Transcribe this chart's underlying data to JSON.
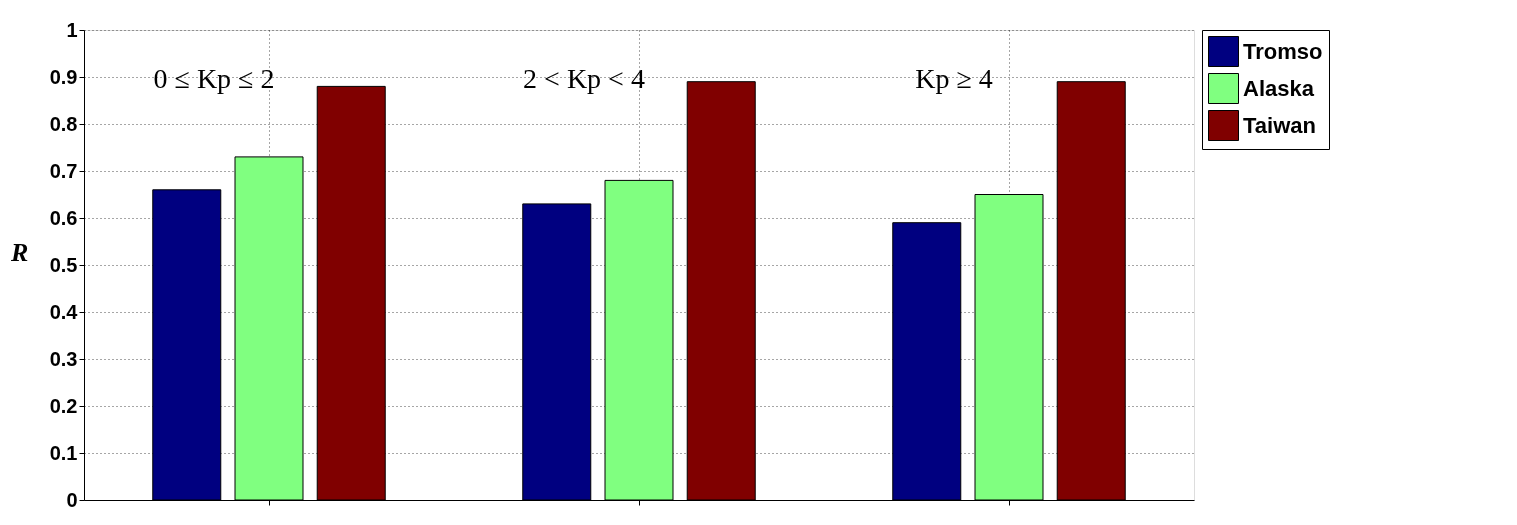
{
  "chart_data": {
    "type": "bar",
    "ylabel": "R",
    "categories": [
      null,
      null,
      null
    ],
    "series": [
      {
        "name": "Tromso",
        "color": "#000080",
        "values": [
          0.66,
          0.63,
          0.59
        ]
      },
      {
        "name": "Alaska",
        "color": "#80ff80",
        "values": [
          0.73,
          0.68,
          0.65
        ]
      },
      {
        "name": "Taiwan",
        "color": "#800000",
        "values": [
          0.88,
          0.89,
          0.89
        ]
      }
    ],
    "annotations": [
      "0 ≤ Kp ≤ 2",
      "2 < Kp < 4",
      "Kp ≥ 4"
    ],
    "ylim": [
      0,
      1
    ],
    "yticks": [
      0,
      0.1,
      0.2,
      0.3,
      0.4,
      0.5,
      0.6,
      0.7,
      0.8,
      0.9,
      1
    ],
    "grid": true,
    "legend": "top right",
    "tick_labels": "y"
  }
}
